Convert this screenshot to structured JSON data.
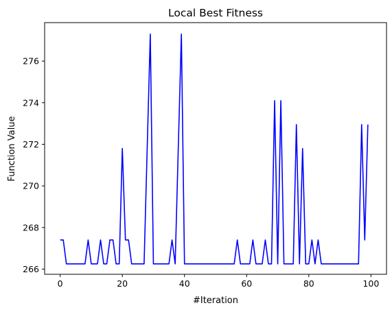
{
  "chart_data": {
    "type": "line",
    "title": "Local Best Fitness",
    "xlabel": "#Iteration",
    "ylabel": "Function Value",
    "xlim": [
      -5,
      105
    ],
    "ylim": [
      265.75,
      277.85
    ],
    "xticks": [
      0,
      20,
      40,
      60,
      80,
      100
    ],
    "yticks": [
      266,
      268,
      270,
      272,
      274,
      276
    ],
    "grid": false,
    "series": [
      {
        "color": "#0000ff",
        "x": [
          0,
          1,
          2,
          3,
          4,
          5,
          6,
          7,
          8,
          9,
          10,
          11,
          12,
          13,
          14,
          15,
          16,
          17,
          18,
          19,
          20,
          21,
          22,
          23,
          24,
          25,
          26,
          27,
          28,
          29,
          30,
          31,
          32,
          33,
          34,
          35,
          36,
          37,
          38,
          39,
          40,
          41,
          42,
          43,
          44,
          45,
          46,
          47,
          48,
          49,
          50,
          51,
          52,
          53,
          54,
          55,
          56,
          57,
          58,
          59,
          60,
          61,
          62,
          63,
          64,
          65,
          66,
          67,
          68,
          69,
          70,
          71,
          72,
          73,
          74,
          75,
          76,
          77,
          78,
          79,
          80,
          81,
          82,
          83,
          84,
          85,
          86,
          87,
          88,
          89,
          90,
          91,
          92,
          93,
          94,
          95,
          96,
          97,
          98,
          99
        ],
        "y": [
          267.4,
          267.4,
          266.25,
          266.25,
          266.25,
          266.25,
          266.25,
          266.25,
          266.25,
          267.4,
          266.25,
          266.25,
          266.25,
          267.4,
          266.25,
          266.25,
          267.4,
          267.4,
          266.25,
          266.25,
          271.8,
          267.4,
          267.4,
          266.25,
          266.25,
          266.25,
          266.25,
          266.25,
          271.8,
          277.3,
          266.25,
          266.25,
          266.25,
          266.25,
          266.25,
          266.25,
          267.4,
          266.25,
          271.8,
          277.3,
          266.25,
          266.25,
          266.25,
          266.25,
          266.25,
          266.25,
          266.25,
          266.25,
          266.25,
          266.25,
          266.25,
          266.25,
          266.25,
          266.25,
          266.25,
          266.25,
          266.25,
          267.4,
          266.25,
          266.25,
          266.25,
          266.25,
          267.4,
          266.25,
          266.25,
          266.25,
          267.4,
          266.25,
          266.25,
          274.1,
          266.25,
          274.1,
          266.25,
          266.25,
          266.25,
          266.25,
          272.95,
          266.25,
          271.8,
          266.25,
          266.25,
          267.4,
          266.25,
          267.4,
          266.25,
          266.25,
          266.25,
          266.25,
          266.25,
          266.25,
          266.25,
          266.25,
          266.25,
          266.25,
          266.25,
          266.25,
          266.25,
          272.95,
          267.4,
          272.95
        ]
      }
    ]
  }
}
